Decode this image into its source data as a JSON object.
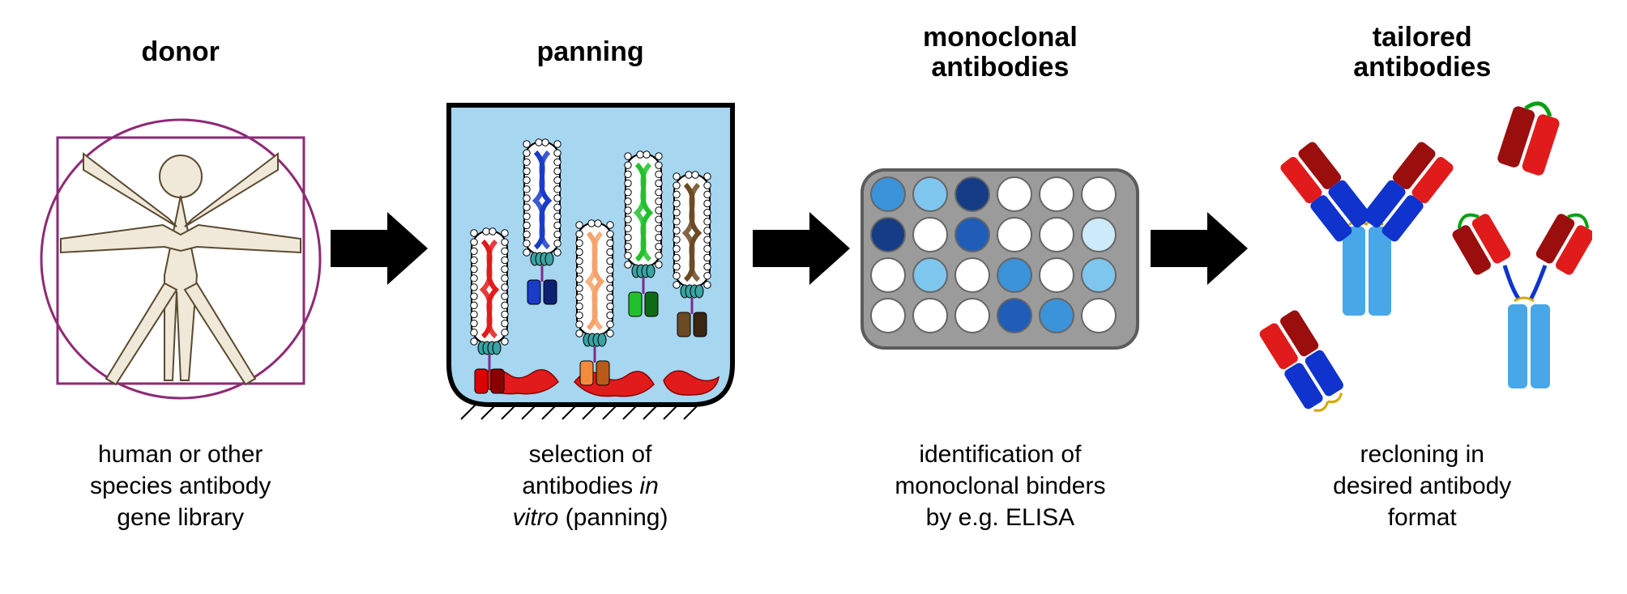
{
  "background_color": "#ffffff",
  "font": {
    "family": "Arial",
    "title_size_pt": 26,
    "title_weight": 700,
    "desc_size_pt": 22
  },
  "arrow": {
    "fill": "#000000",
    "width": 110,
    "height": 80
  },
  "stages": [
    {
      "id": "donor",
      "title": "donor",
      "desc": "human or other\nspecies antibody\ngene library"
    },
    {
      "id": "panning",
      "title": "panning",
      "desc": "selection of\nantibodies in\nvitro (panning)"
    },
    {
      "id": "monoclonal",
      "title": "monoclonal\nantibodies",
      "desc": "identification of\nmonoclonal binders\nby e.g. ELISA"
    },
    {
      "id": "tailored",
      "title": "tailored\nantibodies",
      "desc": "recloning in\ndesired antibody\nformat"
    }
  ],
  "donor": {
    "circle_stroke": "#8e2a75",
    "square_stroke": "#8e2a75",
    "body_fill": "#f0e8d8",
    "body_stroke": "#5a4a30"
  },
  "panning": {
    "tube_fill": "#a6d6f0",
    "tube_stroke": "#000000",
    "antigen_color": "#e11b1b",
    "phages": [
      {
        "helix": "#e11b1b",
        "scfv": [
          "#dc0000",
          "#8a0000"
        ],
        "bound": true
      },
      {
        "helix": "#1a3cc7",
        "scfv": [
          "#1a3cc7",
          "#0e2170"
        ],
        "bound": false
      },
      {
        "helix": "#f5a26b",
        "scfv": [
          "#f28b3e",
          "#b85a18"
        ],
        "bound": true
      },
      {
        "helix": "#22c02e",
        "scfv": [
          "#22c02e",
          "#0e6a15"
        ],
        "bound": false
      },
      {
        "helix": "#6b4a24",
        "scfv": [
          "#6b4a24",
          "#3a2712"
        ],
        "bound": false
      }
    ],
    "phage_coat_stroke": "#000000",
    "phage_coat_fill": "#ffffff",
    "phage_tail_fill": "#3aa3a3"
  },
  "elisa": {
    "plate_fill": "#9b9b9b",
    "plate_stroke": "#5c5c5c",
    "rows": 4,
    "cols": 6,
    "well_stroke": "#666666",
    "well_empty": "#ffffff",
    "shades": [
      "#ffffff",
      "#cdeafa",
      "#7ec6ee",
      "#3b93d9",
      "#1f5db8",
      "#153c84"
    ],
    "wells": [
      [
        3,
        2,
        5,
        0,
        0,
        0
      ],
      [
        5,
        0,
        4,
        0,
        0,
        1
      ],
      [
        0,
        2,
        0,
        3,
        0,
        2
      ],
      [
        0,
        0,
        0,
        4,
        3,
        0
      ]
    ]
  },
  "antibodies": {
    "igg": {
      "heavy_v": "#9a0e0e",
      "heavy_c": "#0f33cc",
      "heavy_fc": "#47a7e8",
      "light_v": "#e11b1b",
      "light_c": "#0f33cc",
      "hinge_stroke": "#d6a700"
    },
    "scfv": {
      "vh": "#9a0e0e",
      "vl": "#e11b1b",
      "linker": "#0aa014"
    },
    "fab": {
      "hv": "#9a0e0e",
      "hc": "#0f33cc",
      "lv": "#e11b1b",
      "lc": "#0f33cc",
      "ss": "#d6a700"
    },
    "scfv_fc": {
      "vh": "#9a0e0e",
      "vl": "#e11b1b",
      "linker": "#0aa014",
      "fc": "#47a7e8",
      "hinge": "#0f33cc"
    }
  }
}
